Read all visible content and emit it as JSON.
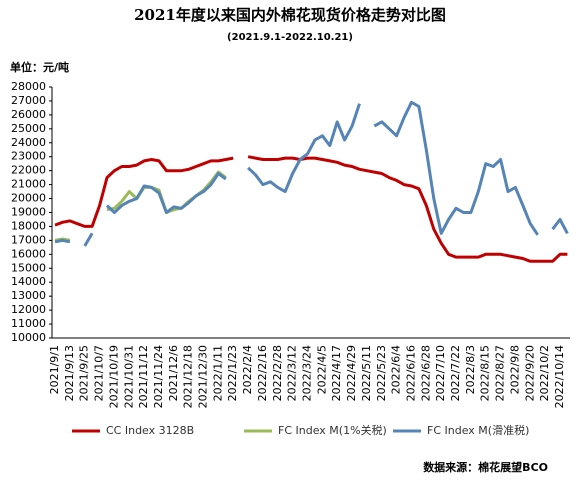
{
  "chart_data": {
    "type": "line",
    "title": "2021年度以来国内外棉花现货价格走势对比图",
    "subtitle": "(2021.9.1-2022.10.21)",
    "y_label": "单位：元/吨",
    "source": "数据来源：棉花展望BCO",
    "categories": [
      "2021/9/1",
      null,
      "2021/9/13",
      null,
      "2021/9/25",
      null,
      "2021/10/7",
      null,
      "2021/10/19",
      null,
      "2021/10/31",
      null,
      "2021/11/12",
      null,
      "2021/11/24",
      null,
      "2021/12/6",
      null,
      "2021/12/18",
      null,
      "2021/12/30",
      null,
      "2022/1/11",
      null,
      "2022/1/23",
      null,
      "2022/2/4",
      null,
      "2022/2/16",
      null,
      "2022/2/28",
      null,
      "2022/3/12",
      null,
      "2022/3/24",
      null,
      "2022/4/5",
      null,
      "2022/4/17",
      null,
      "2022/4/29",
      null,
      "2022/5/11",
      null,
      "2022/5/23",
      null,
      "2022/6/4",
      null,
      "2022/6/16",
      null,
      "2022/6/28",
      null,
      "2022/7/10",
      null,
      "2022/7/22",
      null,
      "2022/8/3",
      null,
      "2022/8/15",
      null,
      "2022/8/27",
      null,
      "2022/9/8",
      null,
      "2022/9/20",
      null,
      "2022/10/2",
      null,
      "2022/10/14",
      null
    ],
    "series": [
      {
        "name": "CC Index 3128B",
        "color": "#c00000",
        "values": [
          18100,
          18300,
          18400,
          18200,
          18000,
          18000,
          19500,
          21500,
          22000,
          22300,
          22300,
          22400,
          22700,
          22800,
          22700,
          22000,
          22000,
          22000,
          22100,
          22300,
          22500,
          22700,
          22700,
          22800,
          22900,
          null,
          23000,
          22900,
          22800,
          22800,
          22800,
          22900,
          22900,
          22800,
          22900,
          22900,
          22800,
          22700,
          22600,
          22400,
          22300,
          22100,
          22000,
          21900,
          21800,
          21500,
          21300,
          21000,
          20900,
          20700,
          19500,
          17800,
          16800,
          16000,
          15800,
          15800,
          15800,
          15800,
          16000,
          16000,
          16000,
          15900,
          15800,
          15700,
          15500,
          15500,
          15500,
          15500,
          16000,
          16000
        ]
      },
      {
        "name": "FC Index M(1%关税)",
        "color": "#9bbb59",
        "values": [
          17000,
          17100,
          17000,
          null,
          16700,
          null,
          null,
          19200,
          19300,
          19800,
          20500,
          20000,
          20800,
          20800,
          20600,
          19000,
          19200,
          19300,
          19800,
          20200,
          20600,
          21200,
          21900,
          21500,
          null,
          null,
          null,
          null,
          null,
          null,
          null,
          null,
          null,
          null,
          null,
          null,
          null,
          null,
          null,
          null,
          null,
          null,
          null,
          null,
          null,
          null,
          null,
          null,
          null,
          null,
          null,
          null,
          null,
          null,
          null,
          null,
          null,
          null,
          null,
          null,
          null,
          null,
          null,
          null,
          null,
          null,
          null,
          null,
          null,
          null
        ]
      },
      {
        "name": "FC Index M(滑准税)",
        "color": "#5584b6",
        "values": [
          16900,
          17000,
          16900,
          null,
          16600,
          17500,
          null,
          19500,
          19000,
          19500,
          19800,
          20000,
          20900,
          20800,
          20400,
          19000,
          19400,
          19300,
          19700,
          20200,
          20500,
          21000,
          21800,
          21400,
          null,
          null,
          22200,
          21700,
          21000,
          21200,
          20800,
          20500,
          21800,
          22800,
          23200,
          24200,
          24500,
          23800,
          25500,
          24200,
          25200,
          26800,
          null,
          25200,
          25500,
          25000,
          24500,
          25800,
          26900,
          26600,
          23500,
          20000,
          17500,
          18500,
          19300,
          19000,
          19000,
          20500,
          22500,
          22300,
          22800,
          20500,
          20800,
          19500,
          18200,
          17400,
          null,
          17800,
          18500,
          17500
        ]
      }
    ],
    "ylim": [
      10000,
      28000
    ],
    "yticks": [
      10000,
      11000,
      12000,
      13000,
      14000,
      15000,
      16000,
      17000,
      18000,
      19000,
      20000,
      21000,
      22000,
      23000,
      24000,
      25000,
      26000,
      27000,
      28000
    ],
    "grid": false,
    "legend": "bottom"
  }
}
